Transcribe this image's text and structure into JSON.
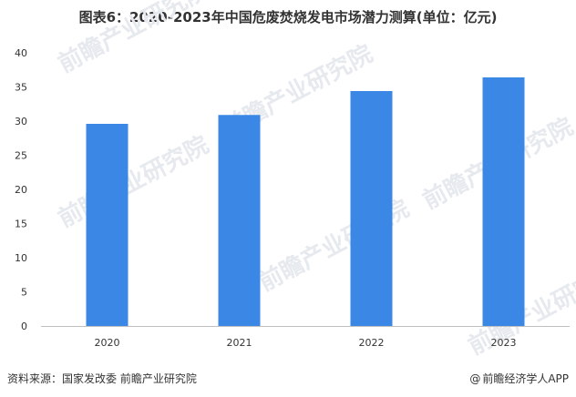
{
  "title": "图表6：2020-2023年中国危废焚烧发电市场潜力测算(单位：亿元)",
  "source": "资料来源：国家发改委 前瞻产业研究院",
  "brand": "前瞻经济学人APP",
  "brand_prefix": "@",
  "watermark": "前瞻产业研究院",
  "colors": {
    "bar": "#3a87e6",
    "axis": "#bfbfbf",
    "text": "#333333",
    "watermark": "#e6e9ee"
  },
  "chart_data": {
    "type": "bar",
    "title": "图表6：2020-2023年中国危废焚烧发电市场潜力测算(单位：亿元)",
    "categories": [
      "2020",
      "2021",
      "2022",
      "2023"
    ],
    "values": [
      29.6,
      30.9,
      34.4,
      36.4
    ],
    "ylim": [
      0,
      40
    ],
    "yticks": [
      0,
      5,
      10,
      15,
      20,
      25,
      30,
      35,
      40
    ],
    "grid": false,
    "xlabel": "",
    "ylabel": ""
  }
}
